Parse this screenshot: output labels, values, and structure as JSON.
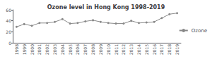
{
  "chart_data": {
    "type": "line",
    "title": "Ozone level in Hong Kong 1998-2019",
    "categories": [
      "1998",
      "1999",
      "2000",
      "2001",
      "2002",
      "2003",
      "2004",
      "2005",
      "2006",
      "2007",
      "2008",
      "2009",
      "2010",
      "2011",
      "2012",
      "2013",
      "2014",
      "2015",
      "2016",
      "2017",
      "2018",
      "2019"
    ],
    "series": [
      {
        "name": "Ozone",
        "color": "#888888",
        "marker": "circle",
        "values": [
          29,
          34,
          31,
          36,
          36,
          38,
          43,
          35,
          36,
          39,
          41,
          38,
          36,
          35,
          35,
          40,
          36,
          37,
          38,
          45,
          52,
          54
        ]
      }
    ],
    "ylim": [
      0,
      60
    ],
    "yticks": [
      0,
      20,
      40,
      60
    ],
    "grid": false,
    "legend": "right"
  }
}
